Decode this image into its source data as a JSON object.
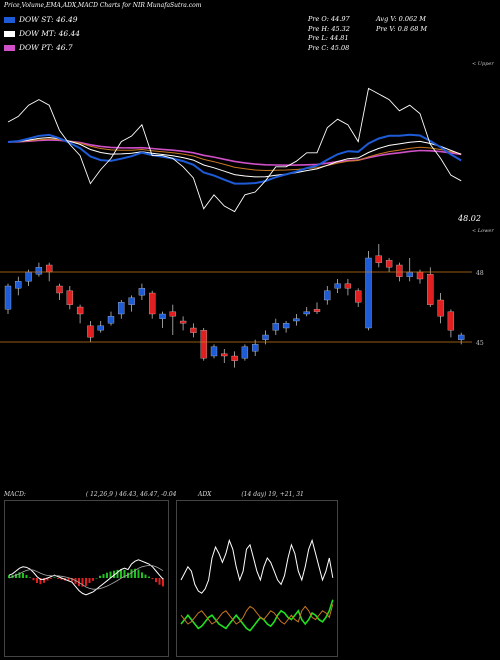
{
  "header": {
    "title": "Price,Volume,EMA,ADX,MACD Charts for NIR MunafaSutra.com"
  },
  "legend": [
    {
      "label": "DOW ST: 46.49",
      "color": "#1e5bd6"
    },
    {
      "label": "DOW MT: 46.44",
      "color": "#ffffff"
    },
    {
      "label": "DOW PT: 46.7",
      "color": "#d050c8"
    }
  ],
  "stats": {
    "col1": [
      "Pre   O: 44.97",
      "Pre   H: 45.32",
      "Pre   L: 44.81",
      "Pre   C: 45.08"
    ],
    "col2": [
      "Avg V: 0.062  M",
      "Pre   V: 0.8          68  M"
    ]
  },
  "labels": {
    "upper": "< Upper",
    "lower": "< Lower",
    "last_value": "48.02",
    "level_high": "48",
    "level_low": "45"
  },
  "macd": {
    "label": "MACD:",
    "params": "( 12,26,9 ) 46.43,  46.47,  -0.04"
  },
  "adx": {
    "label": "ADX",
    "params": "(14  day) 19,  +21,  31"
  },
  "colors": {
    "up": "#1e5bd6",
    "down": "#e02020",
    "level": "#c87820"
  },
  "chart_data": [
    {
      "type": "candlestick",
      "ylim": [
        43.0,
        50.0
      ],
      "levels": [
        48,
        45
      ],
      "candles": [
        [
          46.4,
          47.4,
          47.5,
          46.2
        ],
        [
          47.3,
          47.6,
          47.8,
          47.0
        ],
        [
          47.6,
          48.0,
          48.1,
          47.4
        ],
        [
          47.9,
          48.2,
          48.4,
          47.8
        ],
        [
          48.3,
          48.0,
          48.4,
          47.6
        ],
        [
          47.4,
          47.1,
          47.5,
          46.8
        ],
        [
          47.2,
          46.6,
          47.4,
          46.4
        ],
        [
          46.5,
          46.2,
          46.6,
          45.8
        ],
        [
          45.7,
          45.2,
          45.9,
          45.0
        ],
        [
          45.5,
          45.7,
          45.9,
          45.4
        ],
        [
          45.8,
          46.1,
          46.3,
          45.7
        ],
        [
          46.2,
          46.7,
          46.8,
          46.0
        ],
        [
          46.6,
          46.9,
          47.0,
          46.3
        ],
        [
          47.0,
          47.3,
          47.5,
          46.8
        ],
        [
          47.1,
          46.2,
          47.2,
          46.0
        ],
        [
          46.0,
          46.2,
          46.3,
          45.6
        ],
        [
          46.3,
          46.1,
          46.6,
          45.3
        ],
        [
          45.9,
          45.8,
          46.1,
          45.5
        ],
        [
          45.6,
          45.4,
          45.8,
          45.2
        ],
        [
          45.5,
          44.3,
          45.6,
          44.2
        ],
        [
          44.4,
          44.8,
          44.9,
          44.3
        ],
        [
          44.5,
          44.4,
          44.7,
          44.1
        ],
        [
          44.4,
          44.2,
          44.6,
          43.9
        ],
        [
          44.3,
          44.8,
          44.9,
          44.2
        ],
        [
          44.6,
          44.9,
          45.1,
          44.4
        ],
        [
          45.1,
          45.3,
          45.5,
          44.9
        ],
        [
          45.5,
          45.8,
          46.0,
          45.3
        ],
        [
          45.6,
          45.8,
          45.9,
          45.4
        ],
        [
          45.9,
          46.0,
          46.2,
          45.7
        ],
        [
          46.2,
          46.3,
          46.5,
          46.1
        ],
        [
          46.4,
          46.3,
          46.7,
          46.2
        ],
        [
          46.8,
          47.2,
          47.4,
          46.6
        ],
        [
          47.3,
          47.5,
          47.7,
          47.1
        ],
        [
          47.5,
          47.3,
          47.7,
          47.0
        ],
        [
          47.2,
          46.7,
          47.3,
          46.5
        ],
        [
          45.6,
          48.6,
          48.9,
          45.5
        ],
        [
          48.7,
          48.4,
          49.2,
          48.2
        ],
        [
          48.5,
          48.2,
          48.6,
          48.0
        ],
        [
          48.3,
          47.8,
          48.4,
          47.6
        ],
        [
          47.8,
          48.0,
          48.6,
          47.6
        ],
        [
          48.0,
          47.7,
          48.1,
          47.5
        ],
        [
          47.9,
          46.6,
          48.2,
          46.5
        ],
        [
          46.8,
          46.1,
          47.1,
          45.8
        ],
        [
          46.3,
          45.5,
          46.4,
          45.2
        ],
        [
          45.1,
          45.3,
          45.4,
          44.9
        ]
      ]
    },
    {
      "type": "line",
      "name": "MACD",
      "x": [
        0,
        1,
        2,
        3,
        4,
        5,
        6,
        7,
        8,
        9,
        10,
        11,
        12,
        13,
        14,
        15,
        16,
        17,
        18,
        19,
        20,
        21,
        22,
        23,
        24,
        25,
        26,
        27,
        28,
        29,
        30,
        31,
        32,
        33,
        34,
        35,
        36,
        37,
        38,
        39,
        40,
        41,
        42,
        43,
        44
      ],
      "macd": [
        0.1,
        0.15,
        0.25,
        0.35,
        0.4,
        0.38,
        0.32,
        0.2,
        0.05,
        -0.05,
        -0.05,
        0.0,
        0.05,
        0.1,
        0.05,
        0.0,
        -0.05,
        -0.1,
        -0.15,
        -0.3,
        -0.45,
        -0.55,
        -0.6,
        -0.55,
        -0.5,
        -0.4,
        -0.3,
        -0.2,
        -0.1,
        0.0,
        0.1,
        0.2,
        0.3,
        0.35,
        0.3,
        0.5,
        0.6,
        0.65,
        0.6,
        0.55,
        0.5,
        0.4,
        0.25,
        0.1,
        -0.04
      ],
      "signal": [
        0.0,
        0.05,
        0.1,
        0.15,
        0.22,
        0.27,
        0.3,
        0.28,
        0.23,
        0.17,
        0.12,
        0.09,
        0.08,
        0.08,
        0.08,
        0.06,
        0.04,
        0.01,
        -0.03,
        -0.09,
        -0.16,
        -0.24,
        -0.32,
        -0.37,
        -0.4,
        -0.4,
        -0.38,
        -0.34,
        -0.29,
        -0.23,
        -0.16,
        -0.09,
        -0.01,
        0.06,
        0.11,
        0.19,
        0.27,
        0.35,
        0.4,
        0.43,
        0.45,
        0.44,
        0.4,
        0.34,
        0.26
      ]
    },
    {
      "type": "line",
      "name": "ADX",
      "x": [
        0,
        1,
        2,
        3,
        4,
        5,
        6,
        7,
        8,
        9,
        10,
        11,
        12,
        13,
        14,
        15,
        16,
        17,
        18,
        19,
        20,
        21,
        22,
        23,
        24,
        25,
        26,
        27,
        28,
        29,
        30,
        31,
        32,
        33,
        34,
        35,
        36,
        37,
        38,
        39,
        40,
        41,
        42,
        43,
        44
      ],
      "adx": [
        30,
        33,
        36,
        34,
        28,
        25,
        24,
        26,
        30,
        40,
        45,
        42,
        38,
        42,
        48,
        44,
        36,
        30,
        34,
        44,
        46,
        40,
        34,
        30,
        36,
        40,
        38,
        34,
        30,
        28,
        32,
        40,
        46,
        42,
        34,
        30,
        36,
        44,
        48,
        42,
        36,
        30,
        34,
        40,
        31
      ],
      "plus": [
        10,
        12,
        14,
        12,
        10,
        8,
        9,
        11,
        13,
        14,
        12,
        10,
        9,
        8,
        10,
        12,
        14,
        12,
        10,
        8,
        7,
        9,
        11,
        13,
        12,
        10,
        9,
        11,
        14,
        16,
        15,
        13,
        12,
        14,
        16,
        12,
        10,
        12,
        15,
        14,
        12,
        11,
        13,
        16,
        21
      ],
      "minus": [
        14,
        12,
        10,
        11,
        13,
        15,
        16,
        14,
        12,
        10,
        11,
        13,
        15,
        16,
        14,
        12,
        10,
        11,
        13,
        16,
        18,
        17,
        15,
        13,
        12,
        14,
        16,
        15,
        13,
        11,
        10,
        12,
        14,
        12,
        11,
        16,
        18,
        16,
        13,
        12,
        14,
        16,
        15,
        13,
        19
      ]
    }
  ]
}
